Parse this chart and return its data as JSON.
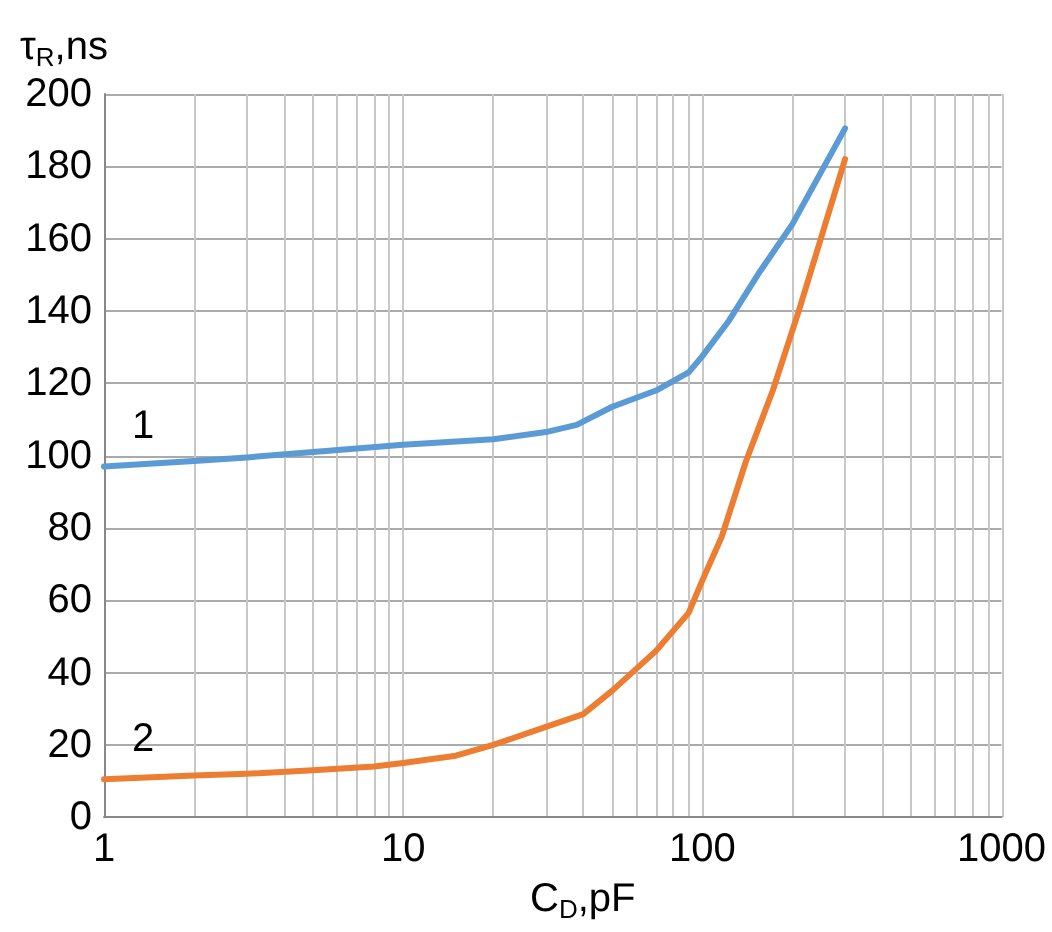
{
  "chart_data": {
    "type": "line",
    "xlabel": "C$_{D}$,pF",
    "ylabel": "τ$_{R}$,ns",
    "log": "x",
    "xlim": [
      1,
      1000
    ],
    "xticks": [
      1,
      10,
      100,
      1000
    ],
    "ylim": [
      0,
      200
    ],
    "yticks": [
      0,
      20,
      40,
      60,
      80,
      100,
      120,
      140,
      160,
      180,
      200
    ],
    "grid": true,
    "legend": false,
    "marker": "none",
    "line_style": "solid",
    "series": [
      {
        "name": "1",
        "color": "#5b9bd5",
        "x": [
          1,
          2,
          3,
          5,
          10,
          20,
          30,
          38,
          50,
          70,
          90,
          100,
          122,
          156,
          200,
          300
        ],
        "values": [
          97,
          98.5,
          99.5,
          101,
          103,
          104.5,
          106.5,
          108.5,
          113.5,
          118,
          123,
          127.5,
          137,
          151,
          164,
          190.5
        ]
      },
      {
        "name": "2",
        "color": "#ed7d31",
        "x": [
          1,
          2,
          3,
          5,
          8,
          10,
          15,
          20,
          30,
          40,
          50,
          70,
          90,
          100,
          116,
          140,
          172,
          211,
          300
        ],
        "values": [
          10.5,
          11.5,
          12,
          13,
          14,
          15,
          17,
          20,
          25,
          28.5,
          35,
          46,
          56.5,
          65.5,
          77.5,
          98.5,
          118,
          140.5,
          182
        ]
      }
    ]
  }
}
